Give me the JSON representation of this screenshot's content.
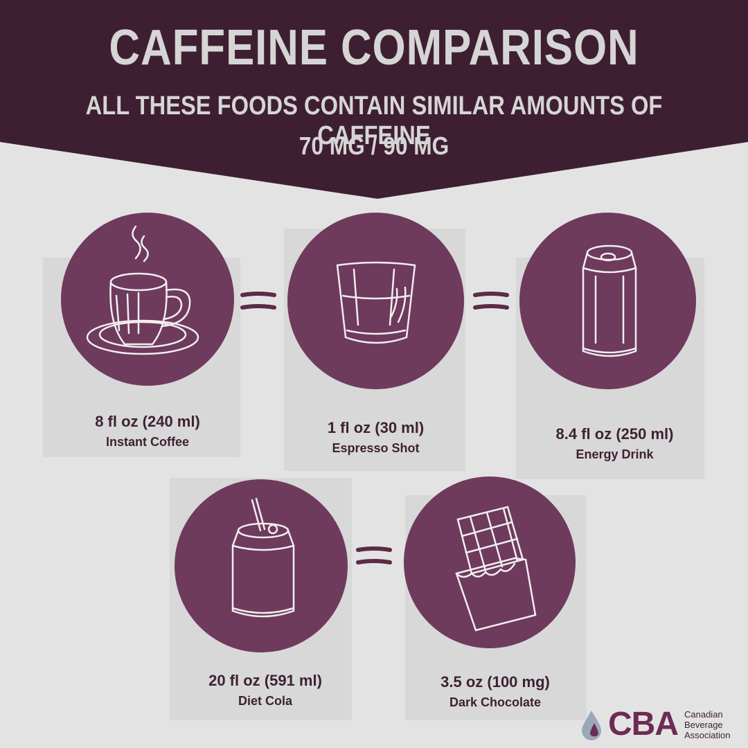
{
  "header": {
    "title": "CAFFEINE COMPARISON",
    "subtitle": "ALL THESE FOODS CONTAIN SIMILAR AMOUNTS OF CAFFEINE",
    "amount": "70 MG / 90 MG"
  },
  "items": [
    {
      "size": "8 fl oz (240 ml)",
      "name": "Instant Coffee",
      "icon": "coffee-cup-icon"
    },
    {
      "size": "1 fl oz (30 ml)",
      "name": "Espresso Shot",
      "icon": "espresso-glass-icon"
    },
    {
      "size": "8.4 fl oz (250 ml)",
      "name": "Energy Drink",
      "icon": "energy-can-icon"
    },
    {
      "size": "20 fl oz (591 ml)",
      "name": "Diet Cola",
      "icon": "soda-can-icon"
    },
    {
      "size": "3.5 oz  (100 mg)",
      "name": "Dark Chocolate",
      "icon": "chocolate-bar-icon"
    }
  ],
  "logo": {
    "abbr": "CBA",
    "line1": "Canadian",
    "line2": "Beverage",
    "line3": "Association"
  },
  "colors": {
    "banner": "#3e1f32",
    "circle": "#6e3b5c",
    "text_dark": "#3d2232",
    "text_light": "#d6d5d5",
    "logo": "#6b2c55"
  }
}
